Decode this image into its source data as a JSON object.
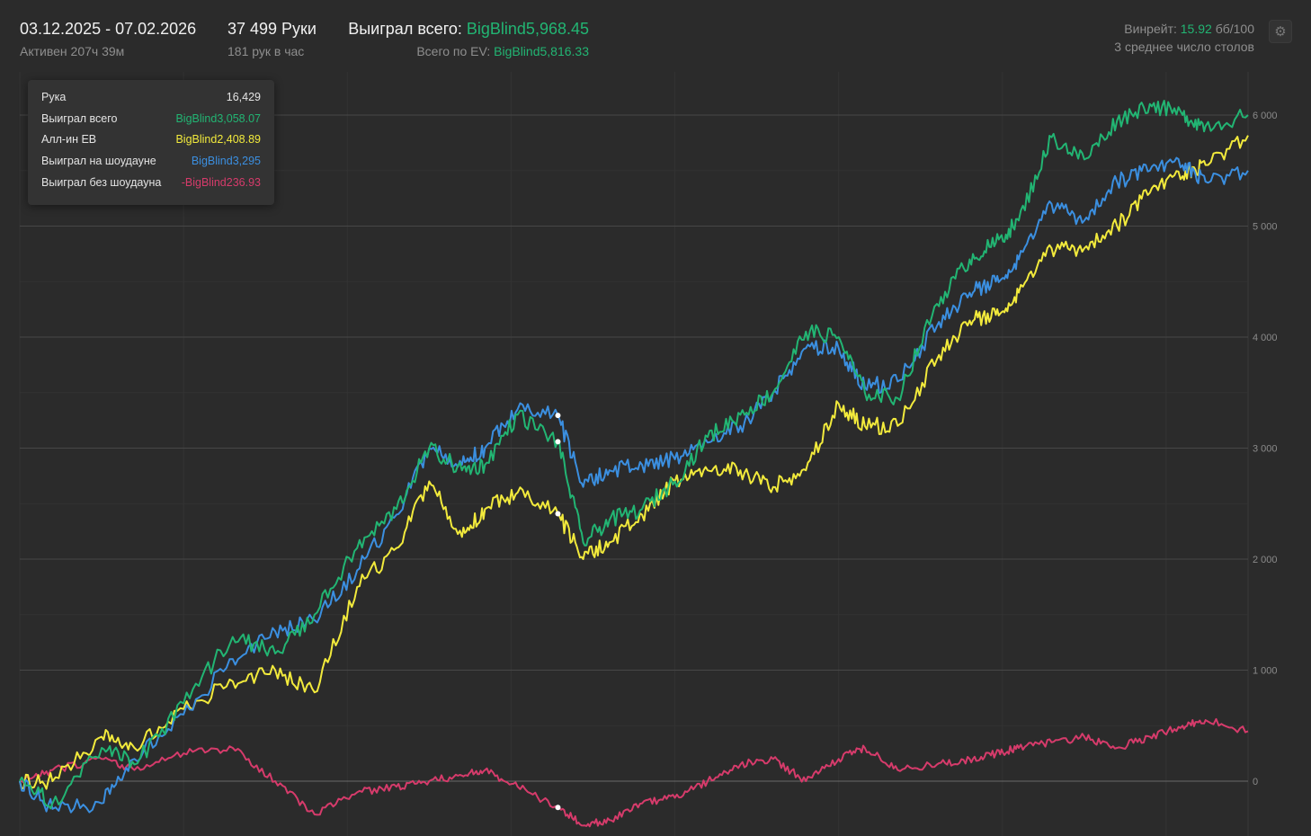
{
  "header": {
    "date_range": "03.12.2025 - 07.02.2026",
    "active_time": "Активен 207ч 39м",
    "hands": "37 499 Руки",
    "hands_per_hour": "181 рук в час",
    "won_label": "Выиграл всего: ",
    "won_value": "BigBlind5,968.45",
    "ev_label": "Всего по EV: ",
    "ev_value": "BigBlind5,816.33",
    "winrate_label": "Винрейт: ",
    "winrate_value": "15.92",
    "winrate_unit": " бб/100",
    "avg_tables": "3 среднее число столов",
    "settings_icon": "gear-icon"
  },
  "tooltip": {
    "rows": [
      {
        "label": "Рука",
        "value": "16,429",
        "color": "#e4e4e4"
      },
      {
        "label": "Выиграл всего",
        "value": "BigBlind3,058.07",
        "color": "#22b573"
      },
      {
        "label": "Алл-ин ЕВ",
        "value": "BigBlind2,408.89",
        "color": "#f2ea3c"
      },
      {
        "label": "Выиграл на шоудауне",
        "value": "BigBlind3,295",
        "color": "#3b8fe0"
      },
      {
        "label": "Выиграл без шоудауна",
        "value": "-BigBlind236.93",
        "color": "#d63b6b"
      }
    ]
  },
  "chart_data": {
    "type": "line",
    "x_range": [
      0,
      37499
    ],
    "ylim": [
      -500,
      6400
    ],
    "y_ticks": [
      "6 000",
      "5 000",
      "4 000",
      "3 000",
      "2 000",
      "1 000",
      "0"
    ],
    "y_tick_values": [
      6000,
      5000,
      4000,
      3000,
      2000,
      1000,
      0
    ],
    "grid": true,
    "hover_hand": 16429,
    "series": [
      {
        "key": "won",
        "color": "#22b573",
        "x": [
          0,
          1000,
          2500,
          3500,
          5000,
          6500,
          7800,
          9000,
          10300,
          11500,
          12500,
          13500,
          14200,
          15200,
          16429,
          17200,
          18000,
          19000,
          20000,
          21000,
          22000,
          23000,
          24000,
          25000,
          25800,
          26800,
          28000,
          29000,
          29800,
          30500,
          31500,
          32500,
          33500,
          34500,
          35500,
          36200,
          37499
        ],
        "y": [
          0,
          -200,
          300,
          150,
          700,
          1300,
          1150,
          1500,
          2100,
          2450,
          3000,
          2800,
          2850,
          3300,
          3058,
          2150,
          2350,
          2450,
          2700,
          3100,
          3300,
          3500,
          4050,
          4000,
          3500,
          3450,
          4300,
          4700,
          4850,
          5050,
          5800,
          5600,
          5950,
          6100,
          6000,
          5900,
          6000
        ]
      },
      {
        "key": "allin_ev",
        "color": "#f2ea3c",
        "x": [
          0,
          1000,
          2500,
          3500,
          5000,
          6500,
          7800,
          9000,
          10300,
          11500,
          12500,
          13500,
          14200,
          15200,
          16429,
          17200,
          18000,
          19000,
          20000,
          21000,
          22000,
          23000,
          24000,
          25000,
          25800,
          26800,
          28000,
          29000,
          29800,
          30500,
          31500,
          32500,
          33500,
          34500,
          35500,
          36200,
          37499
        ],
        "y": [
          0,
          0,
          400,
          300,
          650,
          900,
          1000,
          800,
          1750,
          2100,
          2700,
          2200,
          2450,
          2600,
          2409,
          2000,
          2150,
          2400,
          2700,
          2800,
          2800,
          2650,
          2800,
          3400,
          3200,
          3200,
          3800,
          4150,
          4200,
          4400,
          4800,
          4800,
          5000,
          5300,
          5450,
          5550,
          5816
        ]
      },
      {
        "key": "showdown",
        "color": "#3b8fe0",
        "x": [
          0,
          1000,
          2500,
          3500,
          5000,
          6500,
          7800,
          9000,
          10300,
          11500,
          12500,
          13500,
          14200,
          15200,
          16429,
          17200,
          18000,
          19000,
          20000,
          21000,
          22000,
          23000,
          24000,
          25000,
          25800,
          26800,
          28000,
          29000,
          29800,
          30500,
          31500,
          32500,
          33500,
          34500,
          35500,
          36200,
          37499
        ],
        "y": [
          0,
          -250,
          -200,
          200,
          600,
          1100,
          1350,
          1450,
          1900,
          2400,
          3000,
          2850,
          3000,
          3350,
          3295,
          2650,
          2800,
          2850,
          2900,
          3050,
          3200,
          3500,
          3900,
          3900,
          3550,
          3600,
          4100,
          4400,
          4500,
          4700,
          5200,
          5050,
          5400,
          5500,
          5550,
          5400,
          5500
        ]
      },
      {
        "key": "non_showdown",
        "color": "#d63b6b",
        "x": [
          0,
          1000,
          2500,
          3500,
          5000,
          6500,
          7800,
          9000,
          10300,
          11500,
          12500,
          13500,
          14200,
          15200,
          16429,
          17200,
          18000,
          19000,
          20000,
          21000,
          22000,
          23000,
          24000,
          25000,
          25800,
          26800,
          28000,
          29000,
          29800,
          30500,
          31500,
          32500,
          33500,
          34500,
          35500,
          36200,
          37499
        ],
        "y": [
          0,
          100,
          200,
          100,
          250,
          300,
          0,
          -300,
          -100,
          -50,
          0,
          50,
          100,
          -50,
          -237,
          -400,
          -350,
          -200,
          -150,
          0,
          150,
          200,
          0,
          200,
          300,
          100,
          150,
          200,
          250,
          300,
          350,
          400,
          300,
          400,
          500,
          550,
          450
        ]
      }
    ]
  }
}
